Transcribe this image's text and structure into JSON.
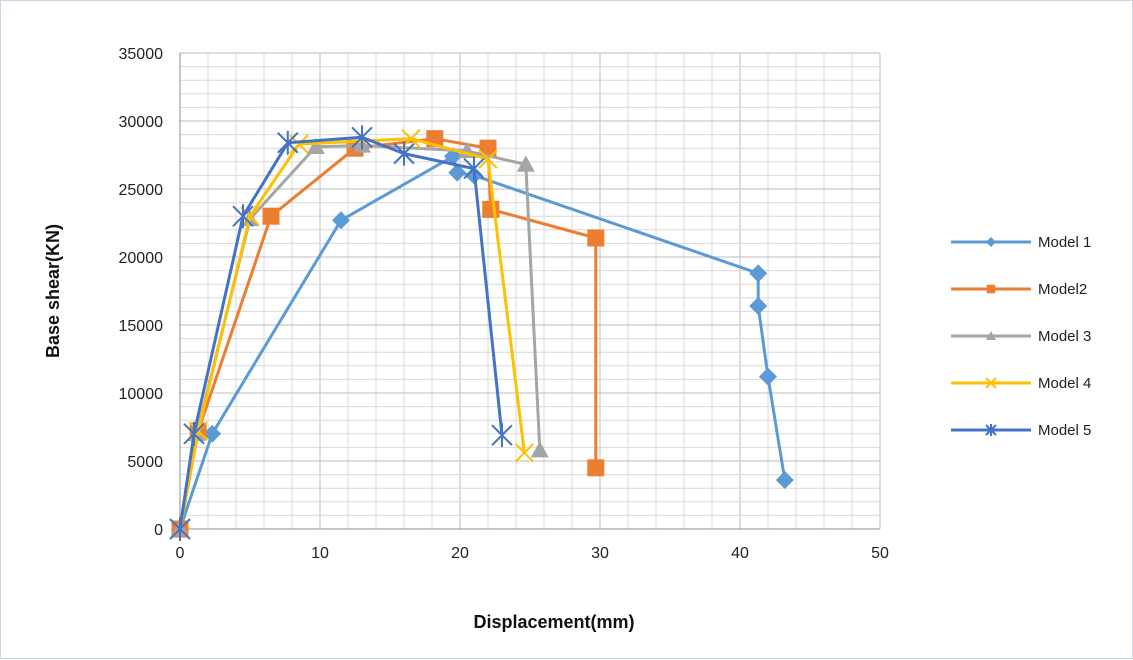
{
  "chart_data": {
    "type": "line",
    "xlabel": "Displacement(mm)",
    "ylabel": "Base shear(KN)",
    "xlim": [
      0,
      50
    ],
    "ylim": [
      0,
      35000
    ],
    "x_ticks": [
      "0",
      "10",
      "20",
      "30",
      "40",
      "50"
    ],
    "y_ticks": [
      "0",
      "5000",
      "10000",
      "15000",
      "20000",
      "25000",
      "30000",
      "35000"
    ],
    "grid": true,
    "legend_position": "right",
    "series": [
      {
        "name": "Model 1",
        "color": "#5b9bd5",
        "marker": "diamond",
        "points": [
          [
            0,
            0
          ],
          [
            2.3,
            7000
          ],
          [
            11.5,
            22700
          ],
          [
            19.5,
            27400
          ],
          [
            19.8,
            26200
          ],
          [
            21,
            26000
          ],
          [
            41.3,
            18800
          ],
          [
            41.3,
            16400
          ],
          [
            42,
            11200
          ],
          [
            43.2,
            3600
          ]
        ]
      },
      {
        "name": "Model2",
        "color": "#ed7d31",
        "marker": "square",
        "points": [
          [
            0,
            0
          ],
          [
            1.3,
            7200
          ],
          [
            6.5,
            23000
          ],
          [
            12.5,
            28000
          ],
          [
            18.2,
            28700
          ],
          [
            22,
            28000
          ],
          [
            22.2,
            23500
          ],
          [
            29.7,
            21400
          ],
          [
            29.7,
            4500
          ]
        ]
      },
      {
        "name": "Model 3",
        "color": "#a5a5a5",
        "marker": "triangle",
        "points": [
          [
            0,
            0
          ],
          [
            1.2,
            7000
          ],
          [
            5,
            22800
          ],
          [
            9.7,
            28100
          ],
          [
            13,
            28200
          ],
          [
            20.5,
            27800
          ],
          [
            24.7,
            26800
          ],
          [
            25.7,
            5800
          ]
        ]
      },
      {
        "name": "Model 4",
        "color": "#ffc000",
        "marker": "x",
        "points": [
          [
            0,
            0
          ],
          [
            1.3,
            7200
          ],
          [
            5,
            23000
          ],
          [
            8.5,
            28300
          ],
          [
            16.5,
            28700
          ],
          [
            22,
            27200
          ],
          [
            24.6,
            5600
          ]
        ]
      },
      {
        "name": "Model 5",
        "color": "#4472c4",
        "marker": "star",
        "points": [
          [
            0,
            0
          ],
          [
            1,
            7000
          ],
          [
            4.5,
            23000
          ],
          [
            7.7,
            28400
          ],
          [
            13,
            28800
          ],
          [
            16,
            27600
          ],
          [
            21,
            26500
          ],
          [
            23,
            6900
          ]
        ]
      }
    ]
  }
}
